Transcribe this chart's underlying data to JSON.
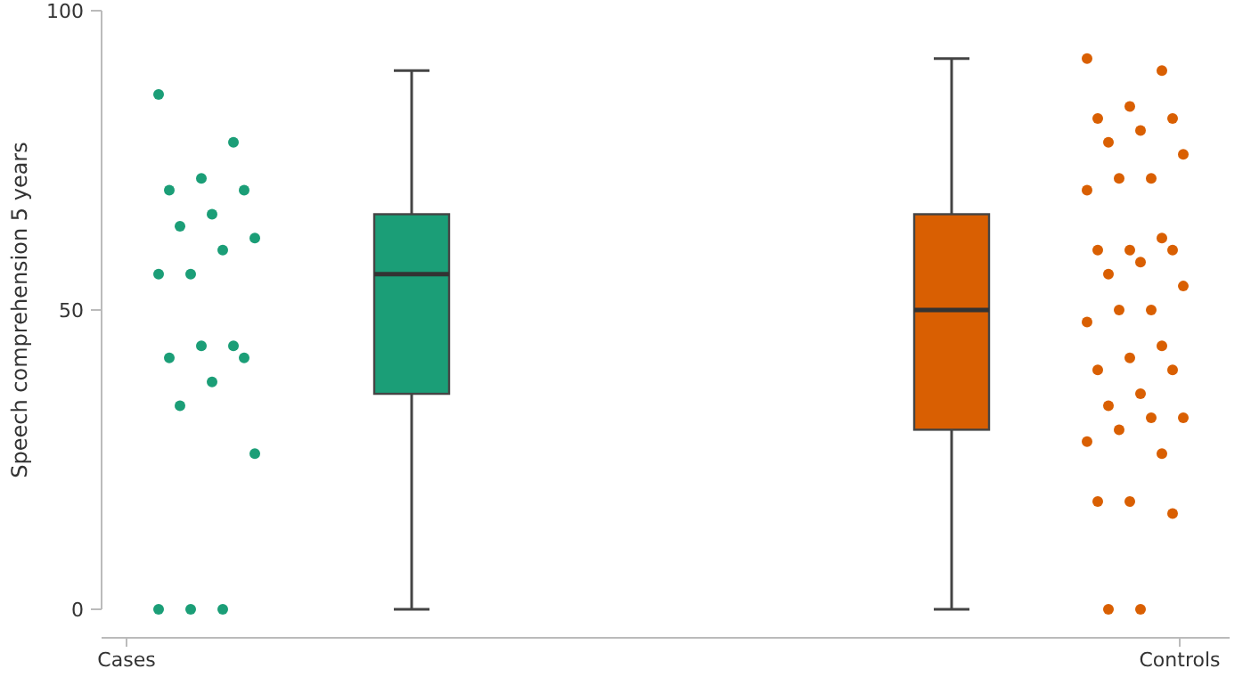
{
  "chart_data": {
    "type": "box",
    "ylabel": "Speech comprehension 5 years",
    "categories": [
      "Cases",
      "Controls"
    ],
    "colors": [
      "#1b9e77",
      "#d95f02"
    ],
    "ylim": [
      0,
      100
    ],
    "yticks": [
      0,
      50,
      100
    ],
    "grid": false,
    "boxes": [
      {
        "low": 0,
        "q1": 36,
        "median": 56,
        "q3": 66,
        "high": 90
      },
      {
        "low": 0,
        "q1": 30,
        "median": 50,
        "q3": 66,
        "high": 92
      }
    ],
    "series": [
      {
        "type": "scatter",
        "color": "#1b9e77",
        "x": [
          "Cases",
          "Cases",
          "Cases",
          "Cases",
          "Cases",
          "Cases",
          "Cases",
          "Cases",
          "Cases",
          "Cases",
          "Cases",
          "Cases",
          "Cases",
          "Cases",
          "Cases",
          "Cases",
          "Cases",
          "Cases",
          "Cases",
          "Cases",
          "Cases"
        ],
        "values": [
          86,
          78,
          72,
          70,
          70,
          66,
          64,
          62,
          60,
          56,
          56,
          44,
          44,
          42,
          42,
          38,
          34,
          26,
          0,
          0,
          0
        ]
      },
      {
        "type": "scatter",
        "color": "#d95f02",
        "x": [
          "Controls",
          "Controls",
          "Controls",
          "Controls",
          "Controls",
          "Controls",
          "Controls",
          "Controls",
          "Controls",
          "Controls",
          "Controls",
          "Controls",
          "Controls",
          "Controls",
          "Controls",
          "Controls",
          "Controls",
          "Controls",
          "Controls",
          "Controls",
          "Controls",
          "Controls",
          "Controls",
          "Controls",
          "Controls",
          "Controls",
          "Controls",
          "Controls",
          "Controls",
          "Controls",
          "Controls",
          "Controls",
          "Controls",
          "Controls",
          "Controls",
          "Controls",
          "Controls"
        ],
        "values": [
          92,
          90,
          84,
          82,
          82,
          80,
          78,
          76,
          72,
          72,
          70,
          62,
          60,
          60,
          60,
          58,
          56,
          54,
          50,
          50,
          48,
          44,
          42,
          40,
          40,
          36,
          34,
          32,
          32,
          30,
          28,
          26,
          18,
          18,
          16,
          0,
          0
        ]
      }
    ]
  }
}
